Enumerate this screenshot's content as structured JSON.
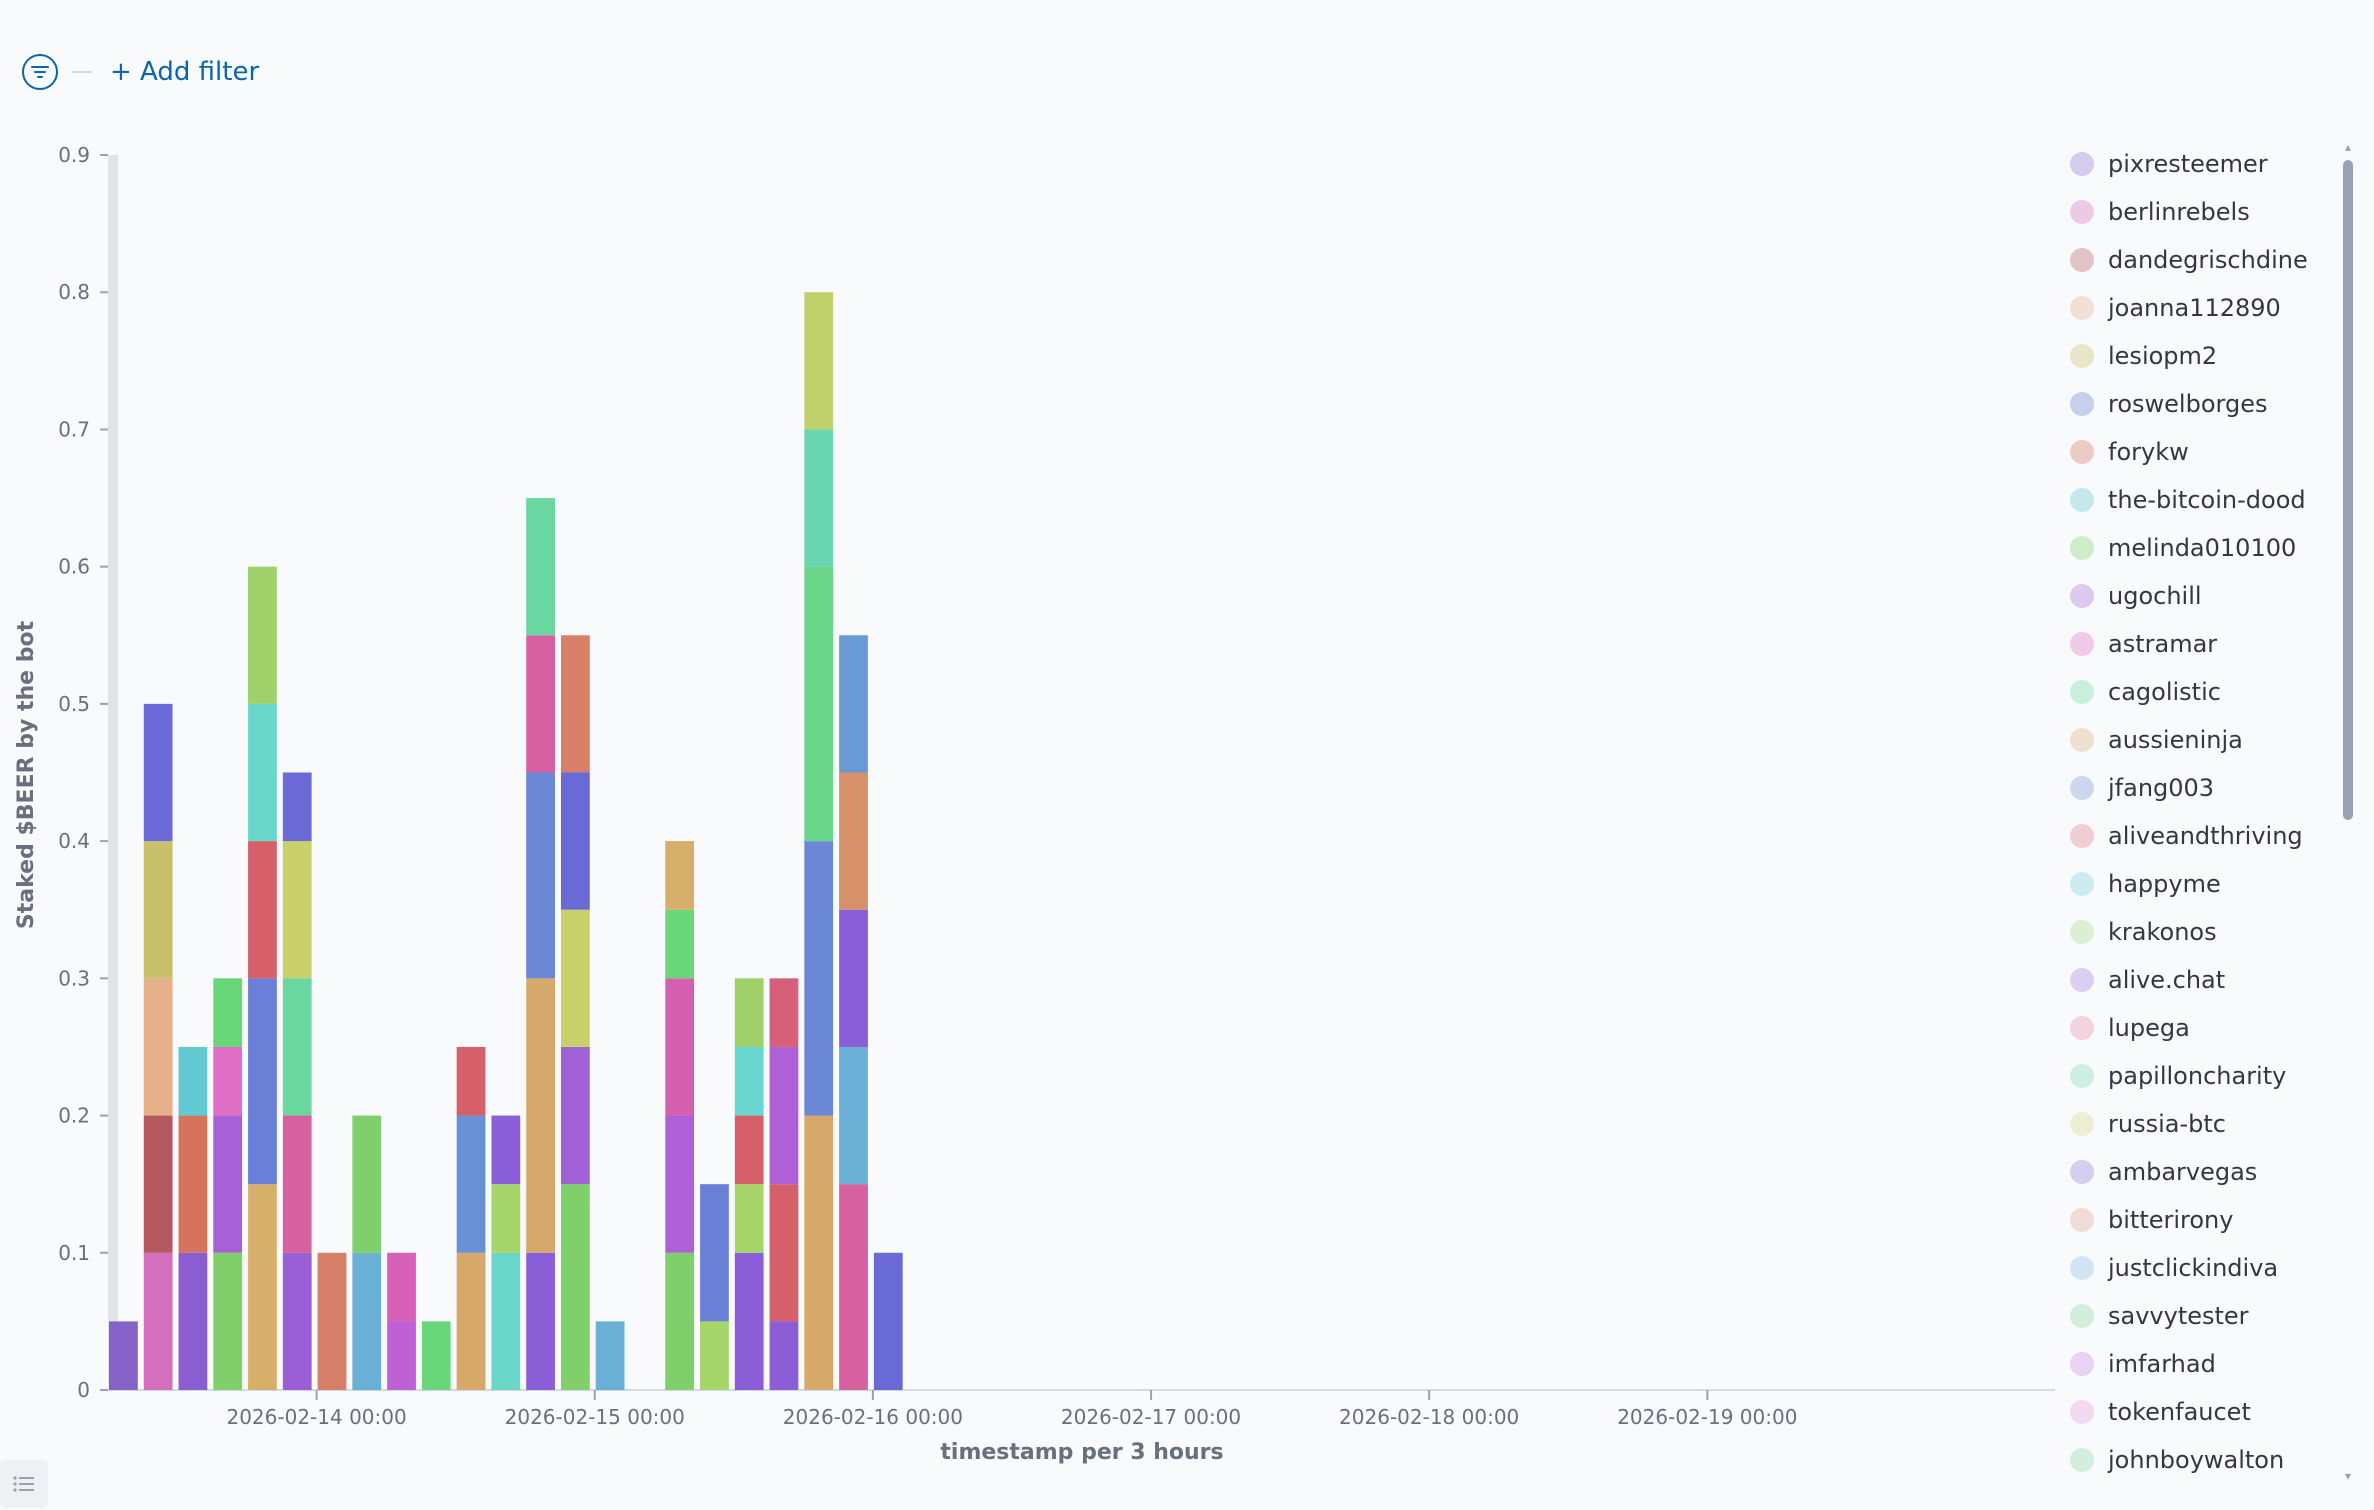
{
  "filter_bar": {
    "icon": "filter-icon",
    "add_filter_label": "+ Add filter"
  },
  "legend": {
    "items": [
      {
        "name": "pixresteemer",
        "color": "#9170d8"
      },
      {
        "name": "berlinrebels",
        "color": "#d36fbc"
      },
      {
        "name": "dandegrischdine",
        "color": "#b5585f"
      },
      {
        "name": "joanna112890",
        "color": "#e6b08a"
      },
      {
        "name": "lesiopm2",
        "color": "#c9c06a"
      },
      {
        "name": "roswelborges",
        "color": "#6a7fd6"
      },
      {
        "name": "forykw",
        "color": "#d6735c"
      },
      {
        "name": "the-bitcoin-dood",
        "color": "#62c9c9"
      },
      {
        "name": "melinda010100",
        "color": "#7fd06a"
      },
      {
        "name": "ugochill",
        "color": "#a86bd6"
      },
      {
        "name": "astramar",
        "color": "#df6fc4"
      },
      {
        "name": "cagolistic",
        "color": "#6ed6a0"
      },
      {
        "name": "aussieninja",
        "color": "#d6b07a"
      },
      {
        "name": "jfang003",
        "color": "#7a92d6"
      },
      {
        "name": "aliveandthriving",
        "color": "#e07a86"
      },
      {
        "name": "happyme",
        "color": "#72d0d8"
      },
      {
        "name": "krakonos",
        "color": "#a6d68a"
      },
      {
        "name": "alive.chat",
        "color": "#a07ae0"
      },
      {
        "name": "lupega",
        "color": "#e68aa6"
      },
      {
        "name": "papilloncharity",
        "color": "#7ad6b0"
      },
      {
        "name": "russia-btc",
        "color": "#d9d88a"
      },
      {
        "name": "ambarvegas",
        "color": "#8a7fd8"
      },
      {
        "name": "bitterirony",
        "color": "#e0a090"
      },
      {
        "name": "justclickindiva",
        "color": "#8ab8e6"
      },
      {
        "name": "savvytester",
        "color": "#8ad69a"
      },
      {
        "name": "imfarhad",
        "color": "#c88ae0"
      },
      {
        "name": "tokenfaucet",
        "color": "#e69ad6"
      },
      {
        "name": "johnboywalton",
        "color": "#8ad6a0"
      }
    ]
  },
  "chart_data": {
    "type": "bar",
    "stacked": true,
    "xlabel": "timestamp per 3 hours",
    "ylabel": "Staked $BEER by the bot",
    "ylim": [
      0,
      0.9
    ],
    "yticks": [
      "0",
      "0.1",
      "0.2",
      "0.3",
      "0.4",
      "0.5",
      "0.6",
      "0.7",
      "0.8",
      "0.9"
    ],
    "xticks": [
      "2026-02-14 00:00",
      "2026-02-15 00:00",
      "2026-02-16 00:00",
      "2026-02-17 00:00",
      "2026-02-18 00:00",
      "2026-02-19 00:00"
    ],
    "x_start": "2026-02-13 06:00",
    "bucket_hours": 3,
    "x_end": "2026-02-20 06:00",
    "bars": [
      {
        "t": "2026-02-13 06:00",
        "segments": [
          [
            "#8561c8",
            0.05
          ]
        ]
      },
      {
        "t": "2026-02-13 09:00",
        "segments": [
          [
            "#d36fbc",
            0.1
          ],
          [
            "#b5585f",
            0.1
          ],
          [
            "#e6b08a",
            0.1
          ],
          [
            "#c9c06a",
            0.1
          ],
          [
            "#6a6ad6",
            0.1
          ]
        ]
      },
      {
        "t": "2026-02-13 12:00",
        "segments": [
          [
            "#8a5ed0",
            0.1
          ],
          [
            "#d6735c",
            0.1
          ],
          [
            "#62c9d2",
            0.05
          ]
        ]
      },
      {
        "t": "2026-02-13 15:00",
        "segments": [
          [
            "#7fd06a",
            0.1
          ],
          [
            "#a860d6",
            0.1
          ],
          [
            "#df6fc4",
            0.05
          ],
          [
            "#6ad67a",
            0.05
          ]
        ]
      },
      {
        "t": "2026-02-13 18:00",
        "segments": [
          [
            "#d6b06a",
            0.15
          ],
          [
            "#6a7fd6",
            0.15
          ],
          [
            "#d6606a",
            0.1
          ],
          [
            "#6ad6c9",
            0.1
          ],
          [
            "#9fd06a",
            0.1
          ]
        ]
      },
      {
        "t": "2026-02-13 21:00",
        "segments": [
          [
            "#9a5ed6",
            0.1
          ],
          [
            "#d660a0",
            0.1
          ],
          [
            "#6ad6a0",
            0.1
          ],
          [
            "#c9d06a",
            0.1
          ],
          [
            "#6a6ad6",
            0.05
          ]
        ]
      },
      {
        "t": "2026-02-14 00:00",
        "segments": [
          [
            "#d6806a",
            0.1
          ]
        ]
      },
      {
        "t": "2026-02-14 03:00",
        "segments": [
          [
            "#6ab0d6",
            0.1
          ],
          [
            "#7fd06a",
            0.1
          ]
        ]
      },
      {
        "t": "2026-02-14 06:00",
        "segments": [
          [
            "#c060d6",
            0.05
          ],
          [
            "#d660b8",
            0.05
          ]
        ]
      },
      {
        "t": "2026-02-14 09:00",
        "segments": [
          [
            "#6ad67a",
            0.05
          ]
        ]
      },
      {
        "t": "2026-02-14 12:00",
        "segments": [
          [
            "#d6a86a",
            0.1
          ],
          [
            "#6a90d6",
            0.1
          ],
          [
            "#d6606a",
            0.05
          ]
        ]
      },
      {
        "t": "2026-02-14 15:00",
        "segments": [
          [
            "#6ad6c9",
            0.1
          ],
          [
            "#a6d66a",
            0.05
          ],
          [
            "#8a5ed6",
            0.05
          ]
        ]
      },
      {
        "t": "2026-02-14 18:00",
        "segments": [
          [
            "#8a5ed6",
            0.1
          ],
          [
            "#d6a86a",
            0.2
          ],
          [
            "#6a88d6",
            0.15
          ],
          [
            "#d660a0",
            0.1
          ],
          [
            "#6ad6a0",
            0.1
          ]
        ]
      },
      {
        "t": "2026-02-14 21:00",
        "segments": [
          [
            "#7fd06a",
            0.15
          ],
          [
            "#a060d6",
            0.1
          ],
          [
            "#c9d06a",
            0.1
          ],
          [
            "#6a6ad6",
            0.1
          ],
          [
            "#d6806a",
            0.1
          ]
        ]
      },
      {
        "t": "2026-02-15 00:00",
        "segments": [
          [
            "#6ab0d6",
            0.05
          ]
        ]
      },
      {
        "t": "2026-02-15 06:00",
        "segments": [
          [
            "#7fd06a",
            0.1
          ],
          [
            "#b060d6",
            0.1
          ],
          [
            "#d660b0",
            0.1
          ],
          [
            "#6ad67a",
            0.05
          ],
          [
            "#d6b06a",
            0.05
          ]
        ]
      },
      {
        "t": "2026-02-15 09:00",
        "segments": [
          [
            "#a6d66a",
            0.05
          ],
          [
            "#6a7fd6",
            0.1
          ]
        ]
      },
      {
        "t": "2026-02-15 12:00",
        "segments": [
          [
            "#8a5ed6",
            0.1
          ],
          [
            "#a6d66a",
            0.05
          ],
          [
            "#d6606a",
            0.05
          ],
          [
            "#6ad6d0",
            0.05
          ],
          [
            "#9fd06a",
            0.05
          ]
        ]
      },
      {
        "t": "2026-02-15 15:00",
        "segments": [
          [
            "#8a5ed6",
            0.05
          ],
          [
            "#d6606a",
            0.1
          ],
          [
            "#b060d6",
            0.1
          ],
          [
            "#d6607a",
            0.05
          ]
        ]
      },
      {
        "t": "2026-02-15 18:00",
        "segments": [
          [
            "#d6a86a",
            0.2
          ],
          [
            "#6a88d6",
            0.2
          ],
          [
            "#6ad68a",
            0.2
          ],
          [
            "#6ad6b0",
            0.1
          ],
          [
            "#c0d06a",
            0.1
          ]
        ]
      },
      {
        "t": "2026-02-15 21:00",
        "segments": [
          [
            "#d660a0",
            0.15
          ],
          [
            "#6ab0d6",
            0.1
          ],
          [
            "#8a5ed6",
            0.1
          ],
          [
            "#d6906a",
            0.1
          ],
          [
            "#6a9ad6",
            0.1
          ]
        ]
      },
      {
        "t": "2026-02-16 00:00",
        "segments": [
          [
            "#6a6ad6",
            0.1
          ]
        ]
      }
    ]
  }
}
